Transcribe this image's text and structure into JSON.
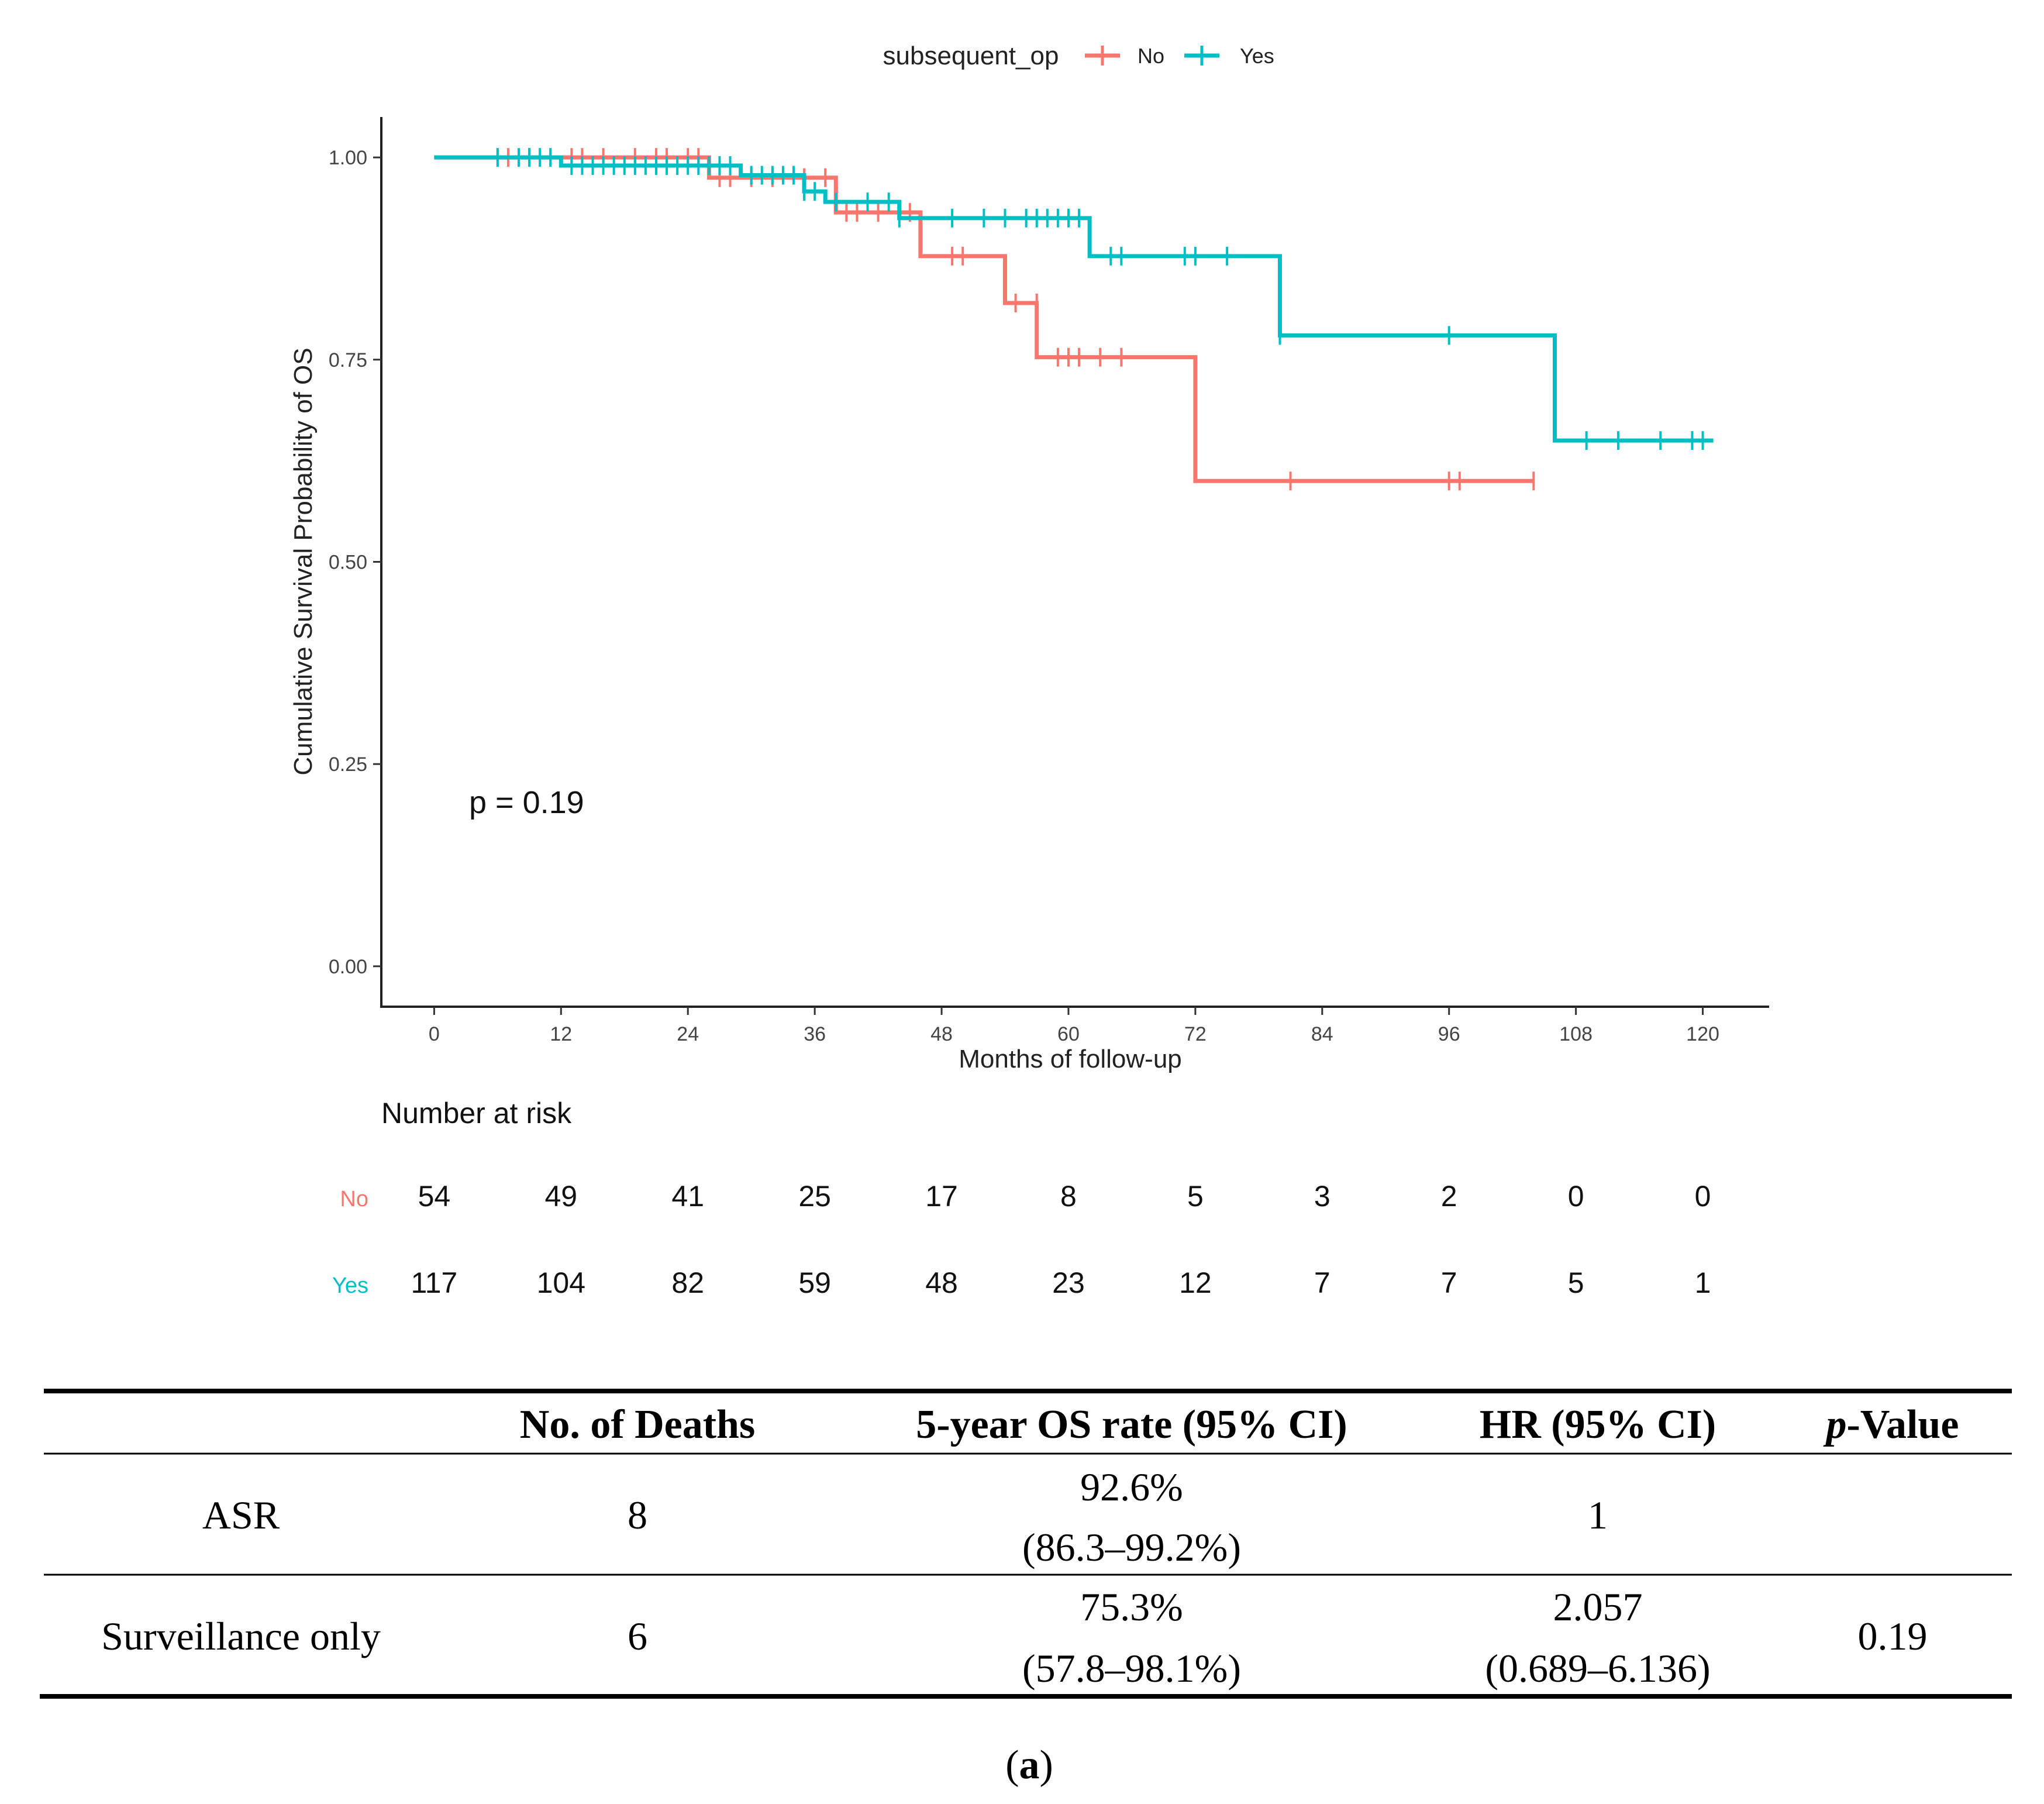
{
  "chart_data": {
    "type": "line",
    "subtype": "kaplan-meier",
    "title": "",
    "legend": {
      "title": "subsequent_op",
      "placement": "top-center",
      "entries": [
        {
          "name": "No",
          "color": "#F8766D"
        },
        {
          "name": "Yes",
          "color": "#00BFC4"
        }
      ]
    },
    "xlabel": "Months of follow-up",
    "ylabel": "Cumulative Survival Probability of OS",
    "xlim": [
      -5,
      126
    ],
    "ylim": [
      -0.05,
      1.05
    ],
    "xticks": [
      0,
      12,
      24,
      36,
      48,
      60,
      72,
      84,
      96,
      108,
      120
    ],
    "yticks": [
      0,
      0.25,
      0.5,
      0.75,
      1.0
    ],
    "ytick_labels": [
      "0.00",
      "0.25",
      "0.50",
      "0.75",
      "1.00"
    ],
    "annotation": "p = 0.19",
    "series": [
      {
        "name": "No",
        "color": "#F8766D",
        "steps": [
          [
            0,
            1.0
          ],
          [
            26,
            0.975
          ],
          [
            38,
            0.932
          ],
          [
            46,
            0.878
          ],
          [
            54,
            0.82
          ],
          [
            57,
            0.753
          ],
          [
            72,
            0.6
          ],
          [
            104,
            0.6
          ]
        ],
        "censored": [
          [
            6,
            1.0
          ],
          [
            7,
            1.0
          ],
          [
            9,
            1.0
          ],
          [
            11,
            1.0
          ],
          [
            13,
            1.0
          ],
          [
            14,
            1.0
          ],
          [
            16,
            1.0
          ],
          [
            19,
            1.0
          ],
          [
            21,
            1.0
          ],
          [
            22,
            1.0
          ],
          [
            24,
            1.0
          ],
          [
            25,
            1.0
          ],
          [
            27,
            0.975
          ],
          [
            28,
            0.975
          ],
          [
            30,
            0.975
          ],
          [
            32,
            0.975
          ],
          [
            35,
            0.975
          ],
          [
            37,
            0.975
          ],
          [
            39,
            0.932
          ],
          [
            40,
            0.932
          ],
          [
            42,
            0.932
          ],
          [
            45,
            0.932
          ],
          [
            49,
            0.878
          ],
          [
            50,
            0.878
          ],
          [
            55,
            0.82
          ],
          [
            57,
            0.82
          ],
          [
            59,
            0.753
          ],
          [
            60,
            0.753
          ],
          [
            61,
            0.753
          ],
          [
            63,
            0.753
          ],
          [
            65,
            0.753
          ],
          [
            81,
            0.6
          ],
          [
            96,
            0.6
          ],
          [
            97,
            0.6
          ],
          [
            104,
            0.6
          ]
        ]
      },
      {
        "name": "Yes",
        "color": "#00BFC4",
        "steps": [
          [
            0,
            1.0
          ],
          [
            12,
            0.99
          ],
          [
            29,
            0.978
          ],
          [
            35,
            0.958
          ],
          [
            37,
            0.945
          ],
          [
            44,
            0.925
          ],
          [
            62,
            0.878
          ],
          [
            80,
            0.78
          ],
          [
            106,
            0.65
          ],
          [
            121,
            0.65
          ]
        ],
        "censored": [
          [
            6,
            1.0
          ],
          [
            8,
            1.0
          ],
          [
            9,
            1.0
          ],
          [
            10,
            1.0
          ],
          [
            11,
            1.0
          ],
          [
            13,
            0.99
          ],
          [
            14,
            0.99
          ],
          [
            15,
            0.99
          ],
          [
            16,
            0.99
          ],
          [
            17,
            0.99
          ],
          [
            18,
            0.99
          ],
          [
            19,
            0.99
          ],
          [
            20,
            0.99
          ],
          [
            21,
            0.99
          ],
          [
            22,
            0.99
          ],
          [
            23,
            0.99
          ],
          [
            24,
            0.99
          ],
          [
            25,
            0.99
          ],
          [
            26,
            0.99
          ],
          [
            27,
            0.99
          ],
          [
            28,
            0.99
          ],
          [
            30,
            0.978
          ],
          [
            31,
            0.978
          ],
          [
            32,
            0.978
          ],
          [
            33,
            0.978
          ],
          [
            34,
            0.978
          ],
          [
            35,
            0.958
          ],
          [
            36,
            0.958
          ],
          [
            38,
            0.945
          ],
          [
            41,
            0.945
          ],
          [
            43,
            0.945
          ],
          [
            44,
            0.925
          ],
          [
            49,
            0.925
          ],
          [
            52,
            0.925
          ],
          [
            54,
            0.925
          ],
          [
            56,
            0.925
          ],
          [
            57,
            0.925
          ],
          [
            58,
            0.925
          ],
          [
            59,
            0.925
          ],
          [
            60,
            0.925
          ],
          [
            61,
            0.925
          ],
          [
            64,
            0.878
          ],
          [
            65,
            0.878
          ],
          [
            71,
            0.878
          ],
          [
            72,
            0.878
          ],
          [
            75,
            0.878
          ],
          [
            80,
            0.78
          ],
          [
            96,
            0.78
          ],
          [
            109,
            0.65
          ],
          [
            112,
            0.65
          ],
          [
            116,
            0.65
          ],
          [
            119,
            0.65
          ],
          [
            120,
            0.65
          ]
        ]
      }
    ]
  },
  "risk_table": {
    "title": "Number at risk",
    "rows": [
      {
        "label": "No",
        "color": "#F8766D",
        "values": [
          "54",
          "49",
          "41",
          "25",
          "17",
          "8",
          "5",
          "3",
          "2",
          "0",
          "0"
        ]
      },
      {
        "label": "Yes",
        "color": "#00BFC4",
        "values": [
          "117",
          "104",
          "82",
          "59",
          "48",
          "23",
          "12",
          "7",
          "7",
          "5",
          "1"
        ]
      }
    ]
  },
  "summary_table": {
    "headers": [
      "",
      "No. of Deaths",
      "5-year OS rate (95% CI)",
      "HR (95% CI)",
      "-Value"
    ],
    "p_italic": "p",
    "rows": [
      {
        "group": "ASR",
        "deaths": "8",
        "os_rate": "92.6%",
        "os_ci": "(86.3–99.2%)",
        "hr": "1",
        "hr_ci": "",
        "p": ""
      },
      {
        "group": "Surveillance only",
        "deaths": "6",
        "os_rate": "75.3%",
        "os_ci": "(57.8–98.1%)",
        "hr": "2.057",
        "hr_ci": "(0.689–6.136)",
        "p": "0.19"
      }
    ]
  },
  "caption": {
    "open": "(",
    "letter": "a",
    "close": ")"
  }
}
